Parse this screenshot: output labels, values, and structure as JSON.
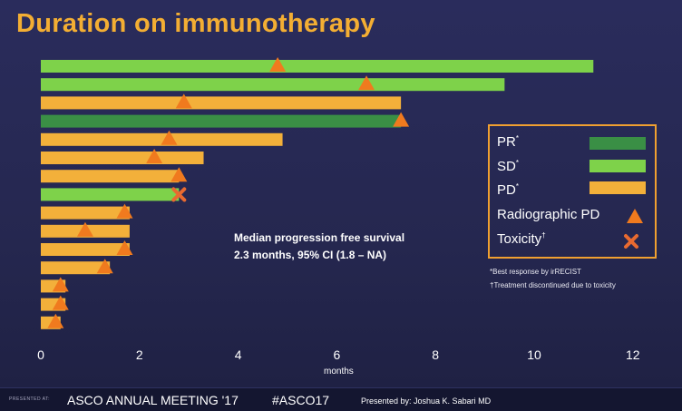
{
  "title": "Duration on immunotherapy",
  "chart_data": {
    "type": "bar",
    "orientation": "horizontal",
    "xlabel": "months",
    "xlim": [
      0,
      12
    ],
    "xticks": [
      0,
      2,
      4,
      6,
      8,
      10,
      12
    ],
    "bars": [
      {
        "response": "SD",
        "duration": 11.2,
        "event": "radiographic_pd",
        "event_at": 4.8
      },
      {
        "response": "SD",
        "duration": 9.4,
        "event": "radiographic_pd",
        "event_at": 6.6
      },
      {
        "response": "PD",
        "duration": 7.3,
        "event": "radiographic_pd",
        "event_at": 2.9
      },
      {
        "response": "PR",
        "duration": 7.3,
        "event": "radiographic_pd",
        "event_at": 7.3
      },
      {
        "response": "PD",
        "duration": 4.9,
        "event": "radiographic_pd",
        "event_at": 2.6
      },
      {
        "response": "PD",
        "duration": 3.3,
        "event": "radiographic_pd",
        "event_at": 2.3
      },
      {
        "response": "PD",
        "duration": 2.8,
        "event": "radiographic_pd",
        "event_at": 2.8
      },
      {
        "response": "SD",
        "duration": 2.8,
        "event": "toxicity",
        "event_at": 2.8
      },
      {
        "response": "PD",
        "duration": 1.8,
        "event": "radiographic_pd",
        "event_at": 1.7
      },
      {
        "response": "PD",
        "duration": 1.8,
        "event": "radiographic_pd",
        "event_at": 0.9
      },
      {
        "response": "PD",
        "duration": 1.8,
        "event": "radiographic_pd",
        "event_at": 1.7
      },
      {
        "response": "PD",
        "duration": 1.4,
        "event": "radiographic_pd",
        "event_at": 1.3
      },
      {
        "response": "PD",
        "duration": 0.5,
        "event": "radiographic_pd",
        "event_at": 0.4
      },
      {
        "response": "PD",
        "duration": 0.5,
        "event": "radiographic_pd",
        "event_at": 0.4
      },
      {
        "response": "PD",
        "duration": 0.4,
        "event": "radiographic_pd",
        "event_at": 0.3
      }
    ],
    "colors": {
      "PR": "#3a8f45",
      "SD": "#7ed24a",
      "PD": "#f3b03a",
      "marker": "#f07a1e"
    }
  },
  "legend": {
    "pr": "PR",
    "sd": "SD",
    "pd": "PD",
    "radiographic": "Radiographic PD",
    "toxicity": "Toxicity",
    "asterisk": "*",
    "dagger": "†"
  },
  "footnotes": {
    "best_response": "*Best response by irRECIST",
    "discontinued": "†Treatment discontinued due to toxicity"
  },
  "annotation": {
    "line1": "Median progression free survival",
    "line2": "2.3 months, 95% CI (1.8 – NA)"
  },
  "footer": {
    "presented_at": "PRESENTED AT:",
    "meeting": "ASCO ANNUAL MEETING '17",
    "hashtag": "#ASCO17",
    "presented_by": "Presented by: Joshua K. Sabari MD"
  }
}
